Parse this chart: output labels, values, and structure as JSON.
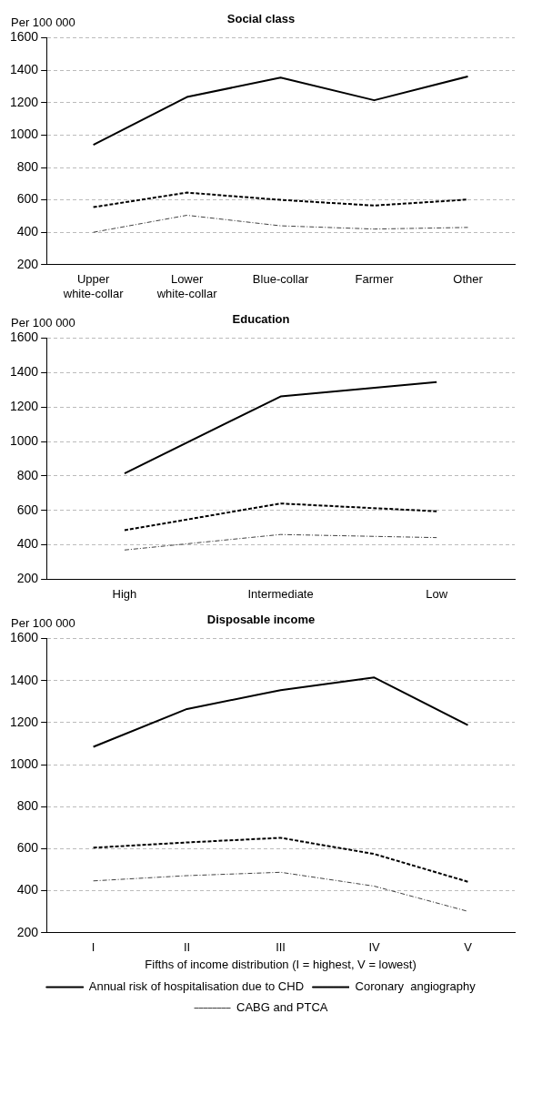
{
  "chart_data": [
    {
      "type": "line",
      "title": "Social class",
      "ylabel": "Per 100 000",
      "categories": [
        "Upper white-collar",
        "Lower white-collar",
        "Blue-collar",
        "Farmer",
        "Other"
      ],
      "ylim": [
        200,
        1600
      ],
      "yticks": [
        200,
        400,
        600,
        800,
        1000,
        1200,
        1400,
        1600
      ],
      "grid": "y",
      "legend": false,
      "marker": "none",
      "series": [
        {
          "color": "#000000",
          "line_style": "solid",
          "values": [
            940,
            1235,
            1355,
            1215,
            1362
          ]
        },
        {
          "color": "#000000",
          "line_style": "dashed",
          "values": [
            555,
            645,
            600,
            565,
            602
          ]
        },
        {
          "color": "#404040",
          "line_style": "dotted",
          "values": [
            400,
            505,
            440,
            420,
            430
          ]
        }
      ]
    },
    {
      "type": "line",
      "title": "Education",
      "ylabel": "Per 100 000",
      "categories": [
        "High",
        "Intermediate",
        "Low"
      ],
      "ylim": [
        200,
        1600
      ],
      "yticks": [
        200,
        400,
        600,
        800,
        1000,
        1200,
        1400,
        1600
      ],
      "grid": "y",
      "legend": false,
      "marker": "none",
      "series": [
        {
          "color": "#000000",
          "line_style": "solid",
          "values": [
            815,
            1262,
            1345
          ]
        },
        {
          "color": "#000000",
          "line_style": "dashed",
          "values": [
            485,
            640,
            595
          ]
        },
        {
          "color": "#404040",
          "line_style": "dotted",
          "values": [
            370,
            460,
            442
          ]
        }
      ]
    },
    {
      "type": "line",
      "title": "Disposable income",
      "ylabel": "Per 100 000",
      "xlabel": "Fifths of income distribution (I = highest, V = lowest)",
      "categories": [
        "I",
        "II",
        "III",
        "IV",
        "V"
      ],
      "ylim": [
        200,
        1600
      ],
      "yticks": [
        200,
        400,
        600,
        800,
        1000,
        1200,
        1400,
        1600
      ],
      "grid": "y",
      "legend": "bottom",
      "marker": "none",
      "series": [
        {
          "name": "Annual risk of hospitalisation due to CHD",
          "color": "#000000",
          "line_style": "solid",
          "values": [
            1085,
            1265,
            1355,
            1415,
            1188
          ]
        },
        {
          "name": "Coronary  angiography",
          "color": "#000000",
          "line_style": "dashed",
          "values": [
            605,
            630,
            652,
            575,
            443
          ]
        },
        {
          "name": "CABG and PTCA",
          "color": "#404040",
          "line_style": "dotted",
          "values": [
            447,
            472,
            488,
            422,
            302
          ]
        }
      ]
    }
  ]
}
